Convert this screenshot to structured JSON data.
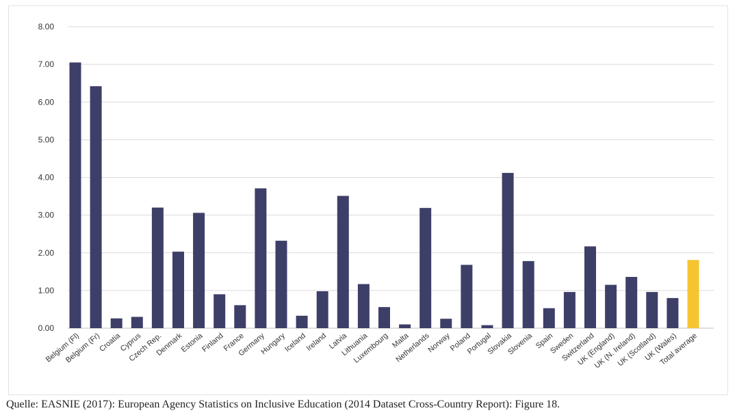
{
  "chart_data": {
    "type": "bar",
    "title": "",
    "xlabel": "",
    "ylabel": "",
    "ylim": [
      0,
      8
    ],
    "yticks": [
      "0.00",
      "1.00",
      "2.00",
      "3.00",
      "4.00",
      "5.00",
      "6.00",
      "7.00",
      "8.00"
    ],
    "grid": true,
    "legend": "none",
    "colors": {
      "bar": "#3d3f68",
      "highlight": "#f7c431",
      "grid": "#d9d9d9",
      "axis": "#bfbfbf"
    },
    "highlight_category": "Total average",
    "categories": [
      "Belgium (Fl)",
      "Belgium (Fr)",
      "Croatia",
      "Cyprus",
      "Czech Rep.",
      "Denmark",
      "Estonia",
      "Finland",
      "France",
      "Germany",
      "Hungary",
      "Iceland",
      "Ireland",
      "Latvia",
      "Lithuania",
      "Luxembourg",
      "Malta",
      "Netherlands",
      "Norway",
      "Poland",
      "Portugal",
      "Slovakia",
      "Slovenia",
      "Spain",
      "Sweden",
      "Switzerland",
      "UK (England)",
      "UK (N. Ireland)",
      "UK (Scotland)",
      "UK (Wales)",
      "Total average"
    ],
    "values": [
      7.05,
      6.42,
      0.26,
      0.3,
      3.2,
      2.03,
      3.06,
      0.9,
      0.61,
      3.71,
      2.32,
      0.33,
      0.98,
      3.51,
      1.17,
      0.56,
      0.1,
      3.19,
      0.25,
      1.68,
      0.08,
      4.12,
      1.78,
      0.53,
      0.96,
      2.17,
      1.15,
      1.36,
      0.96,
      0.8,
      1.81
    ]
  },
  "caption": "Quelle: EASNIE (2017): European Agency Statistics on Inclusive Education (2014 Dataset Cross-Country Report): Figure 18."
}
